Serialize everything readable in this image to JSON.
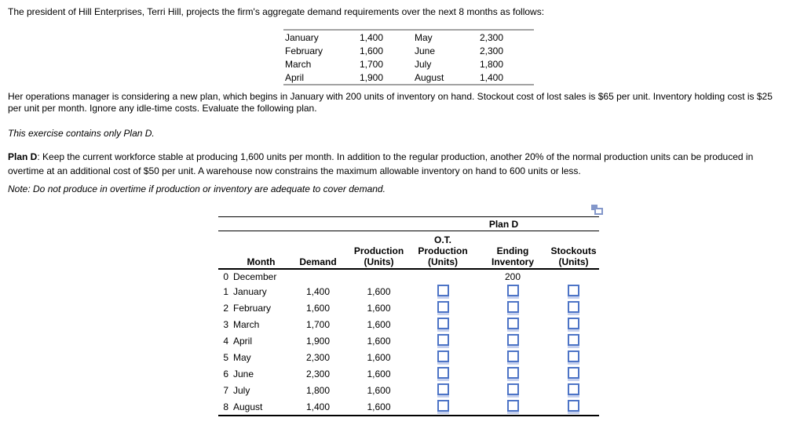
{
  "intro": {
    "text": "The president of Hill Enterprises, Terri Hill, projects the firm's aggregate demand requirements over the next 8 months as follows:"
  },
  "demand_table": {
    "rows": [
      [
        "January",
        "1,400",
        "May",
        "2,300"
      ],
      [
        "February",
        "1,600",
        "June",
        "2,300"
      ],
      [
        "March",
        "1,700",
        "July",
        "1,800"
      ],
      [
        "April",
        "1,900",
        "August",
        "1,400"
      ]
    ]
  },
  "operations": {
    "line1": "Her operations manager is considering a new plan, which begins in January with 200 units of inventory on hand. Stockout cost of lost sales is $65 per unit. Inventory holding cost is $25",
    "line2": "per unit per month. Ignore any idle-time costs. Evaluate the following plan."
  },
  "exercise_note": "This exercise contains only Plan D.",
  "plan_d": {
    "label": "Plan D",
    "line1": ": Keep the current workforce stable at producing 1,600 units per month. In addition to the regular production, another 20% of the normal production units can be produced in",
    "line2": "overtime at an additional cost of $50 per unit. A warehouse now constrains the maximum allowable inventory on hand to 600 units or less."
  },
  "note": "Note: Do not produce in overtime if production or inventory are adequate to cover demand.",
  "icons": {
    "copy_icon": "copy-table-icon"
  },
  "colors": {
    "input_border": "#4d74c6",
    "input_shadow": "#c5d0ee",
    "icon_blue": "#8397ca",
    "demand_table_border": "#a3a3a3",
    "plan_table_line": "#000000"
  },
  "plan_table": {
    "group_header": "Plan D",
    "columns": [
      {
        "key": "month",
        "lines": [
          "Month"
        ]
      },
      {
        "key": "demand",
        "lines": [
          "Demand"
        ]
      },
      {
        "key": "production",
        "lines": [
          "Production",
          "(Units)"
        ]
      },
      {
        "key": "ot_production",
        "lines": [
          "O.T.",
          "Production",
          "(Units)"
        ]
      },
      {
        "key": "ending_inventory",
        "lines": [
          "Ending",
          "Inventory"
        ]
      },
      {
        "key": "stockouts",
        "lines": [
          "Stockouts",
          "(Units)"
        ]
      }
    ],
    "rows": [
      {
        "idx": "0",
        "month": "December",
        "demand": "",
        "production": "",
        "ot_input": false,
        "ending": "200",
        "ending_input": false,
        "stock_input": false
      },
      {
        "idx": "1",
        "month": "January",
        "demand": "1,400",
        "production": "1,600",
        "ot_input": true,
        "ending": "",
        "ending_input": true,
        "stock_input": true
      },
      {
        "idx": "2",
        "month": "February",
        "demand": "1,600",
        "production": "1,600",
        "ot_input": true,
        "ending": "",
        "ending_input": true,
        "stock_input": true
      },
      {
        "idx": "3",
        "month": "March",
        "demand": "1,700",
        "production": "1,600",
        "ot_input": true,
        "ending": "",
        "ending_input": true,
        "stock_input": true
      },
      {
        "idx": "4",
        "month": "April",
        "demand": "1,900",
        "production": "1,600",
        "ot_input": true,
        "ending": "",
        "ending_input": true,
        "stock_input": true
      },
      {
        "idx": "5",
        "month": "May",
        "demand": "2,300",
        "production": "1,600",
        "ot_input": true,
        "ending": "",
        "ending_input": true,
        "stock_input": true
      },
      {
        "idx": "6",
        "month": "June",
        "demand": "2,300",
        "production": "1,600",
        "ot_input": true,
        "ending": "",
        "ending_input": true,
        "stock_input": true
      },
      {
        "idx": "7",
        "month": "July",
        "demand": "1,800",
        "production": "1,600",
        "ot_input": true,
        "ending": "",
        "ending_input": true,
        "stock_input": true
      },
      {
        "idx": "8",
        "month": "August",
        "demand": "1,400",
        "production": "1,600",
        "ot_input": true,
        "ending": "",
        "ending_input": true,
        "stock_input": true
      }
    ]
  }
}
